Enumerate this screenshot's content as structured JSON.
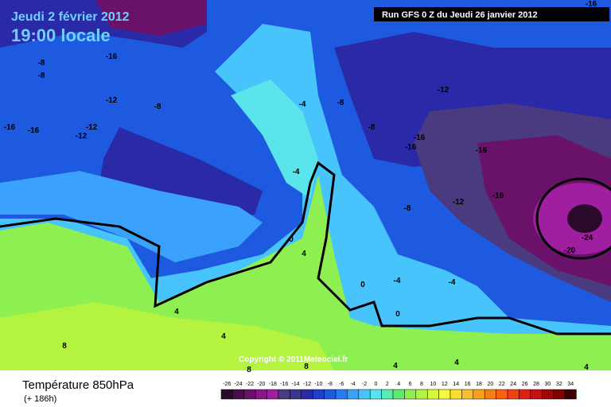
{
  "header": {
    "date": "Jeudi 2 février 2012",
    "time": "19:00 locale",
    "run": "Run GFS 0 Z du Jeudi 26 janvier 2012"
  },
  "copyright": "Copyright © 2011Meteociel.fr",
  "footer": {
    "title": "Température 850hPa",
    "lead": "(+ 186h)"
  },
  "contour_labels": [
    "-16",
    "-8",
    "-8",
    "-12",
    "-8",
    "-16",
    "-16",
    "-12",
    "-12",
    "-4",
    "-8",
    "-12",
    "-8",
    "-16",
    "-16",
    "-16",
    "-4",
    "-16",
    "-12",
    "-8",
    "-24",
    "-20",
    "0",
    "4",
    "0",
    "-4",
    "-4",
    "0",
    "4",
    "4",
    "8",
    "8",
    "8",
    "4",
    "4",
    "4",
    "-16"
  ],
  "scale": {
    "ticks": [
      -26,
      -24,
      -22,
      -20,
      -18,
      -16,
      -14,
      -12,
      -10,
      -8,
      -6,
      -4,
      -2,
      0,
      2,
      4,
      6,
      8,
      10,
      12,
      14,
      16,
      18,
      20,
      22,
      24,
      26,
      28,
      30,
      32,
      34
    ],
    "colors": [
      "#2a0a2a",
      "#4a0e4a",
      "#6a126a",
      "#8a168a",
      "#a01ea0",
      "#4a3a80",
      "#383894",
      "#2a2aa8",
      "#2040c8",
      "#1e5ae0",
      "#2a7cf4",
      "#3aa2fc",
      "#48c4fc",
      "#5ae4ec",
      "#58ecb0",
      "#60e870",
      "#8ef050",
      "#b4f440",
      "#d8f83c",
      "#f8f83c",
      "#f8e030",
      "#f8c028",
      "#f8a020",
      "#f88018",
      "#f86010",
      "#f04010",
      "#e02010",
      "#c81010",
      "#a00808",
      "#780404",
      "#400000"
    ]
  }
}
